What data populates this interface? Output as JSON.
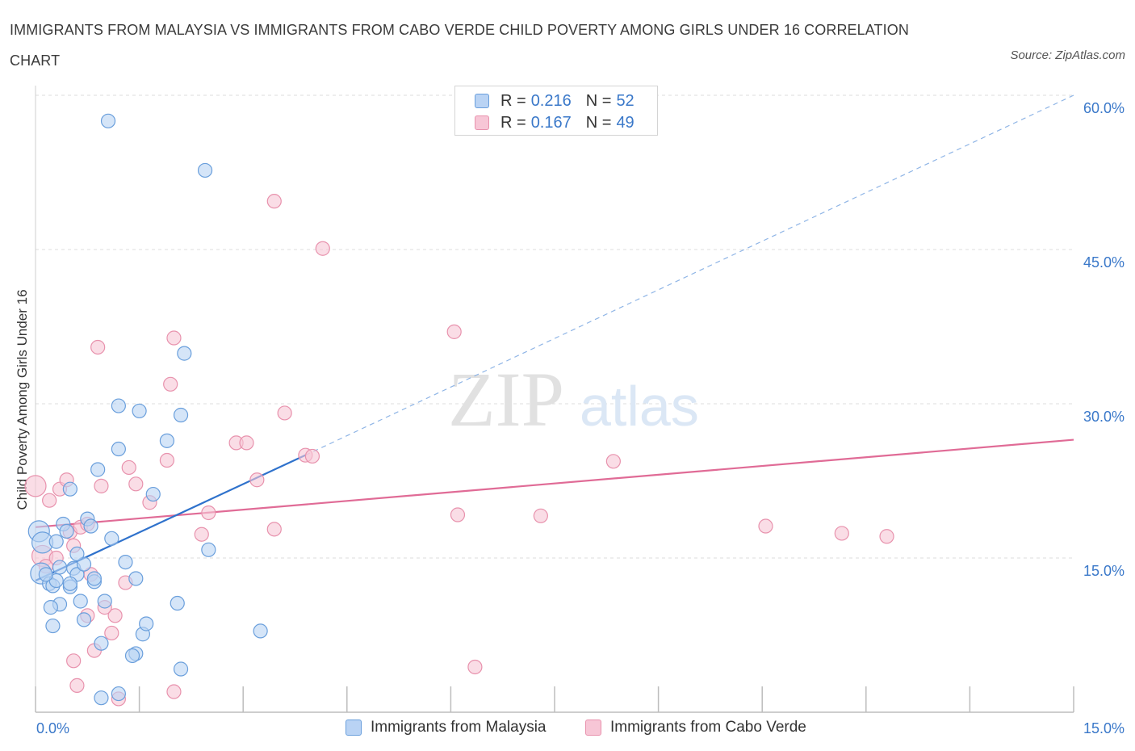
{
  "title": "IMMIGRANTS FROM MALAYSIA VS IMMIGRANTS FROM CABO VERDE CHILD POVERTY AMONG GIRLS UNDER 16 CORRELATION CHART",
  "source": "Source: ZipAtlas.com",
  "colors": {
    "malaysia_fill": "#b9d3f4",
    "malaysia_stroke": "#6a9fdc",
    "malaysia_line": "#2f72cc",
    "caboverde_fill": "#f7c6d6",
    "caboverde_stroke": "#e892ad",
    "caboverde_line": "#e06b96",
    "tick_label": "#3a78c9",
    "grid": "#dddddd"
  },
  "legend_top": {
    "rows": [
      {
        "r_label": "R =",
        "r_value": "0.216",
        "n_label": "N =",
        "n_value": "52"
      },
      {
        "r_label": "R =",
        "r_value": "0.167",
        "n_label": "N =",
        "n_value": "49"
      }
    ]
  },
  "legend_bottom": {
    "items": [
      {
        "label": "Immigrants from Malaysia"
      },
      {
        "label": "Immigrants from Cabo Verde"
      }
    ]
  },
  "chart_data": {
    "type": "scatter",
    "title": "IMMIGRANTS FROM MALAYSIA VS IMMIGRANTS FROM CABO VERDE CHILD POVERTY AMONG GIRLS UNDER 16 CORRELATION CHART",
    "xlabel": "",
    "ylabel": "Child Poverty Among Girls Under 16",
    "xlim": [
      0,
      15
    ],
    "ylim": [
      0,
      60
    ],
    "x_tick_labels": [
      "0.0%",
      "15.0%"
    ],
    "y_ticks": [
      15,
      30,
      45,
      60
    ],
    "y_tick_labels": [
      "15.0%",
      "30.0%",
      "45.0%",
      "60.0%"
    ],
    "grid": true,
    "legend_position": "top-center",
    "watermark": "ZIPatlas",
    "series": [
      {
        "name": "Immigrants from Malaysia",
        "R": 0.216,
        "N": 52,
        "trend": {
          "x0": 0.0,
          "y0": 12.8,
          "x1": 3.9,
          "y1": 25.0,
          "dashed_to_x": 15.0,
          "dashed_to_y": 60.0
        },
        "points": [
          [
            0.05,
            17.6
          ],
          [
            0.1,
            16.5
          ],
          [
            0.08,
            13.5
          ],
          [
            0.2,
            12.5
          ],
          [
            0.25,
            12.3
          ],
          [
            0.3,
            12.8
          ],
          [
            0.35,
            10.5
          ],
          [
            0.22,
            10.2
          ],
          [
            0.4,
            18.3
          ],
          [
            0.45,
            17.6
          ],
          [
            0.5,
            12.2
          ],
          [
            0.55,
            14.0
          ],
          [
            0.6,
            13.4
          ],
          [
            0.65,
            10.8
          ],
          [
            0.7,
            14.4
          ],
          [
            0.75,
            18.8
          ],
          [
            0.8,
            18.1
          ],
          [
            0.85,
            12.7
          ],
          [
            0.9,
            23.6
          ],
          [
            0.95,
            6.7
          ],
          [
            1.0,
            10.8
          ],
          [
            1.1,
            16.9
          ],
          [
            1.2,
            25.6
          ],
          [
            1.3,
            14.6
          ],
          [
            1.45,
            13.0
          ],
          [
            1.55,
            7.6
          ],
          [
            1.6,
            8.6
          ],
          [
            1.7,
            21.2
          ],
          [
            1.9,
            26.4
          ],
          [
            2.05,
            10.6
          ],
          [
            2.1,
            4.2
          ],
          [
            2.15,
            34.9
          ],
          [
            2.5,
            15.8
          ],
          [
            1.05,
            57.5
          ],
          [
            2.45,
            52.7
          ],
          [
            1.2,
            29.8
          ],
          [
            1.5,
            29.3
          ],
          [
            2.1,
            28.9
          ],
          [
            0.5,
            21.7
          ],
          [
            0.3,
            16.6
          ],
          [
            0.15,
            13.4
          ],
          [
            0.6,
            15.4
          ],
          [
            0.25,
            8.4
          ],
          [
            0.7,
            9.0
          ],
          [
            0.95,
            1.4
          ],
          [
            1.2,
            1.8
          ],
          [
            1.45,
            5.7
          ],
          [
            1.4,
            5.5
          ],
          [
            3.25,
            7.9
          ],
          [
            0.5,
            12.5
          ],
          [
            0.35,
            14.1
          ],
          [
            0.85,
            13.0
          ]
        ]
      },
      {
        "name": "Immigrants from Cabo Verde",
        "R": 0.167,
        "N": 49,
        "trend": {
          "x0": 0.0,
          "y0": 18.0,
          "x1": 15.0,
          "y1": 26.5
        },
        "points": [
          [
            0.0,
            22.0
          ],
          [
            0.1,
            15.2
          ],
          [
            0.15,
            14.2
          ],
          [
            0.2,
            20.6
          ],
          [
            0.3,
            15.0
          ],
          [
            0.35,
            21.7
          ],
          [
            0.45,
            22.6
          ],
          [
            0.5,
            17.5
          ],
          [
            0.55,
            16.2
          ],
          [
            0.65,
            18.0
          ],
          [
            0.75,
            18.3
          ],
          [
            0.8,
            13.4
          ],
          [
            0.9,
            35.5
          ],
          [
            0.95,
            22.0
          ],
          [
            1.1,
            7.7
          ],
          [
            1.15,
            9.4
          ],
          [
            1.3,
            12.6
          ],
          [
            1.35,
            23.8
          ],
          [
            1.45,
            22.2
          ],
          [
            1.65,
            20.4
          ],
          [
            1.9,
            24.5
          ],
          [
            1.95,
            31.9
          ],
          [
            2.0,
            36.4
          ],
          [
            2.4,
            17.3
          ],
          [
            2.5,
            19.4
          ],
          [
            2.9,
            26.2
          ],
          [
            3.05,
            26.2
          ],
          [
            3.2,
            22.6
          ],
          [
            3.45,
            17.8
          ],
          [
            3.6,
            29.1
          ],
          [
            3.9,
            25.0
          ],
          [
            4.0,
            24.9
          ],
          [
            3.45,
            49.7
          ],
          [
            4.15,
            45.1
          ],
          [
            6.05,
            37.0
          ],
          [
            6.1,
            19.2
          ],
          [
            6.35,
            4.4
          ],
          [
            7.3,
            19.1
          ],
          [
            8.35,
            24.4
          ],
          [
            10.55,
            18.1
          ],
          [
            11.65,
            17.4
          ],
          [
            12.3,
            17.1
          ],
          [
            0.6,
            2.6
          ],
          [
            0.55,
            5.0
          ],
          [
            0.85,
            6.0
          ],
          [
            1.2,
            1.3
          ],
          [
            2.0,
            2.0
          ],
          [
            1.0,
            10.2
          ],
          [
            0.75,
            9.4
          ]
        ]
      }
    ]
  }
}
